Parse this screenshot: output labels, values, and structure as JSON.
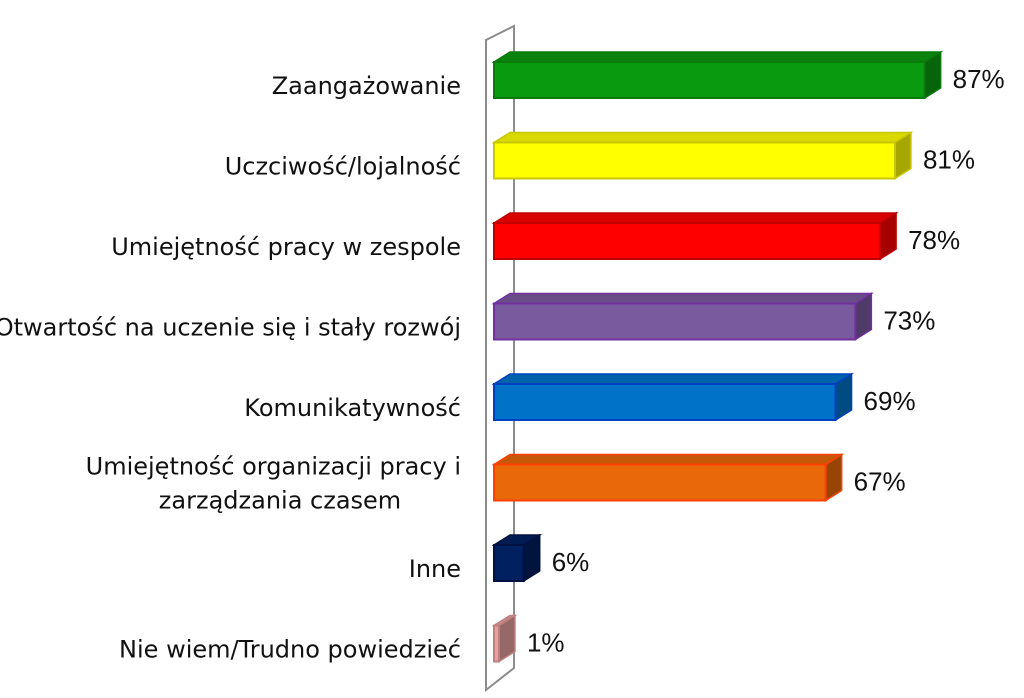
{
  "chart_data": {
    "type": "bar",
    "orientation": "horizontal",
    "style": "3d",
    "grid": false,
    "legend": "none",
    "xlim": [
      0,
      100
    ],
    "categories": [
      "Zaangażowanie",
      "Uczciwość/lojalność",
      "Umiejętność pracy w zespole",
      "Otwartość na uczenie się i stały rozwój",
      "Komunikatywność",
      "Umiejętność organizacji pracy i zarządzania czasem",
      "Inne",
      "Nie wiem/Trudno powiedzieć"
    ],
    "category_label_lines": [
      [
        "Zaangażowanie"
      ],
      [
        "Uczciwość/lojalność"
      ],
      [
        "Umiejętność pracy w zespole"
      ],
      [
        "Otwartość na uczenie się i stały rozwój"
      ],
      [
        "Komunikatywność"
      ],
      [
        "Umiejętność organizacji pracy i",
        "zarządzania czasem"
      ],
      [
        "Inne"
      ],
      [
        "Nie wiem/Trudno powiedzieć"
      ]
    ],
    "values": [
      87,
      81,
      78,
      73,
      69,
      67,
      6,
      1
    ],
    "value_labels": [
      "87%",
      "81%",
      "78%",
      "73%",
      "69%",
      "67%",
      "6%",
      "1%"
    ],
    "colors": [
      "#0a9a10",
      "#ffff00",
      "#ff0000",
      "#7a5a9e",
      "#0073c8",
      "#e8680a",
      "#002060",
      "#e8a0a0"
    ],
    "border_colors": [
      "#0a7a0a",
      "#c8c800",
      "#c00000",
      "#7030a0",
      "#0040c0",
      "#ff4000",
      "#001040",
      "#c08080"
    ]
  }
}
